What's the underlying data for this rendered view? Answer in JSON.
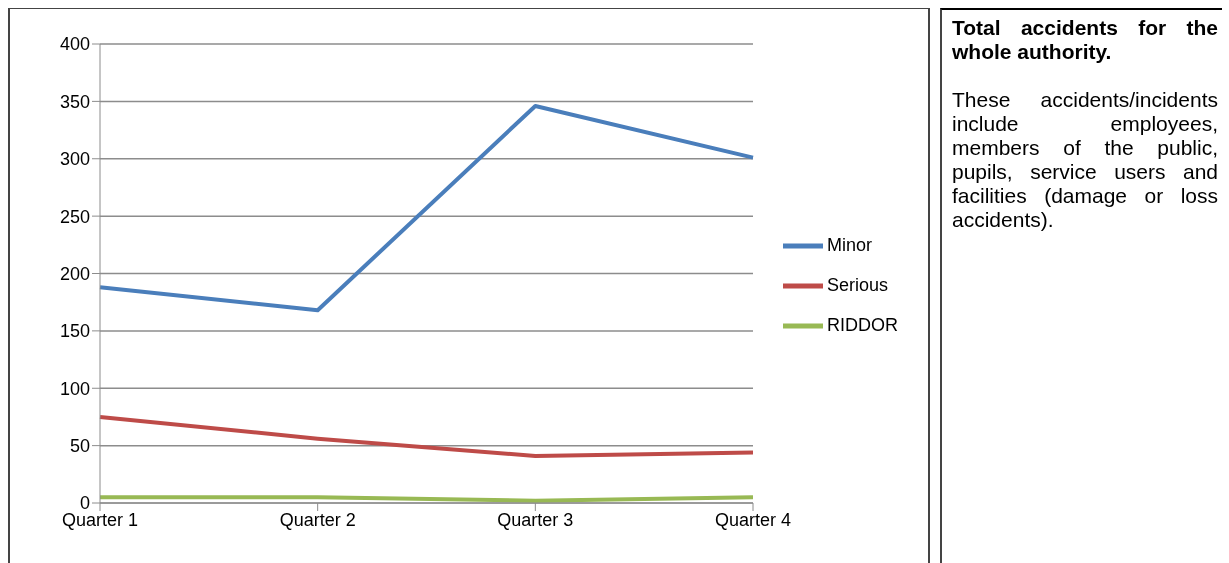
{
  "chart_data": {
    "type": "line",
    "title": "Total accidents for the whole authority.",
    "annotations": [
      "These accidents/incidents include employees, members of the public, pupils, service users and facilities (damage or loss accidents)."
    ],
    "categories": [
      "Quarter 1",
      "Quarter 2",
      "Quarter 3",
      "Quarter 4"
    ],
    "series": [
      {
        "name": "Minor",
        "color": "#4a7ebb",
        "values": [
          188,
          168,
          346,
          301
        ]
      },
      {
        "name": "Serious",
        "color": "#be4b48",
        "values": [
          75,
          56,
          41,
          44
        ]
      },
      {
        "name": "RIDDOR",
        "color": "#98b954",
        "values": [
          5,
          5,
          2,
          5
        ]
      }
    ],
    "ylim": [
      0,
      400
    ],
    "yticks": [
      0,
      50,
      100,
      150,
      200,
      250,
      300,
      350,
      400
    ],
    "grid": "y",
    "legend": "right",
    "marker": "none",
    "line_style": "solid"
  }
}
